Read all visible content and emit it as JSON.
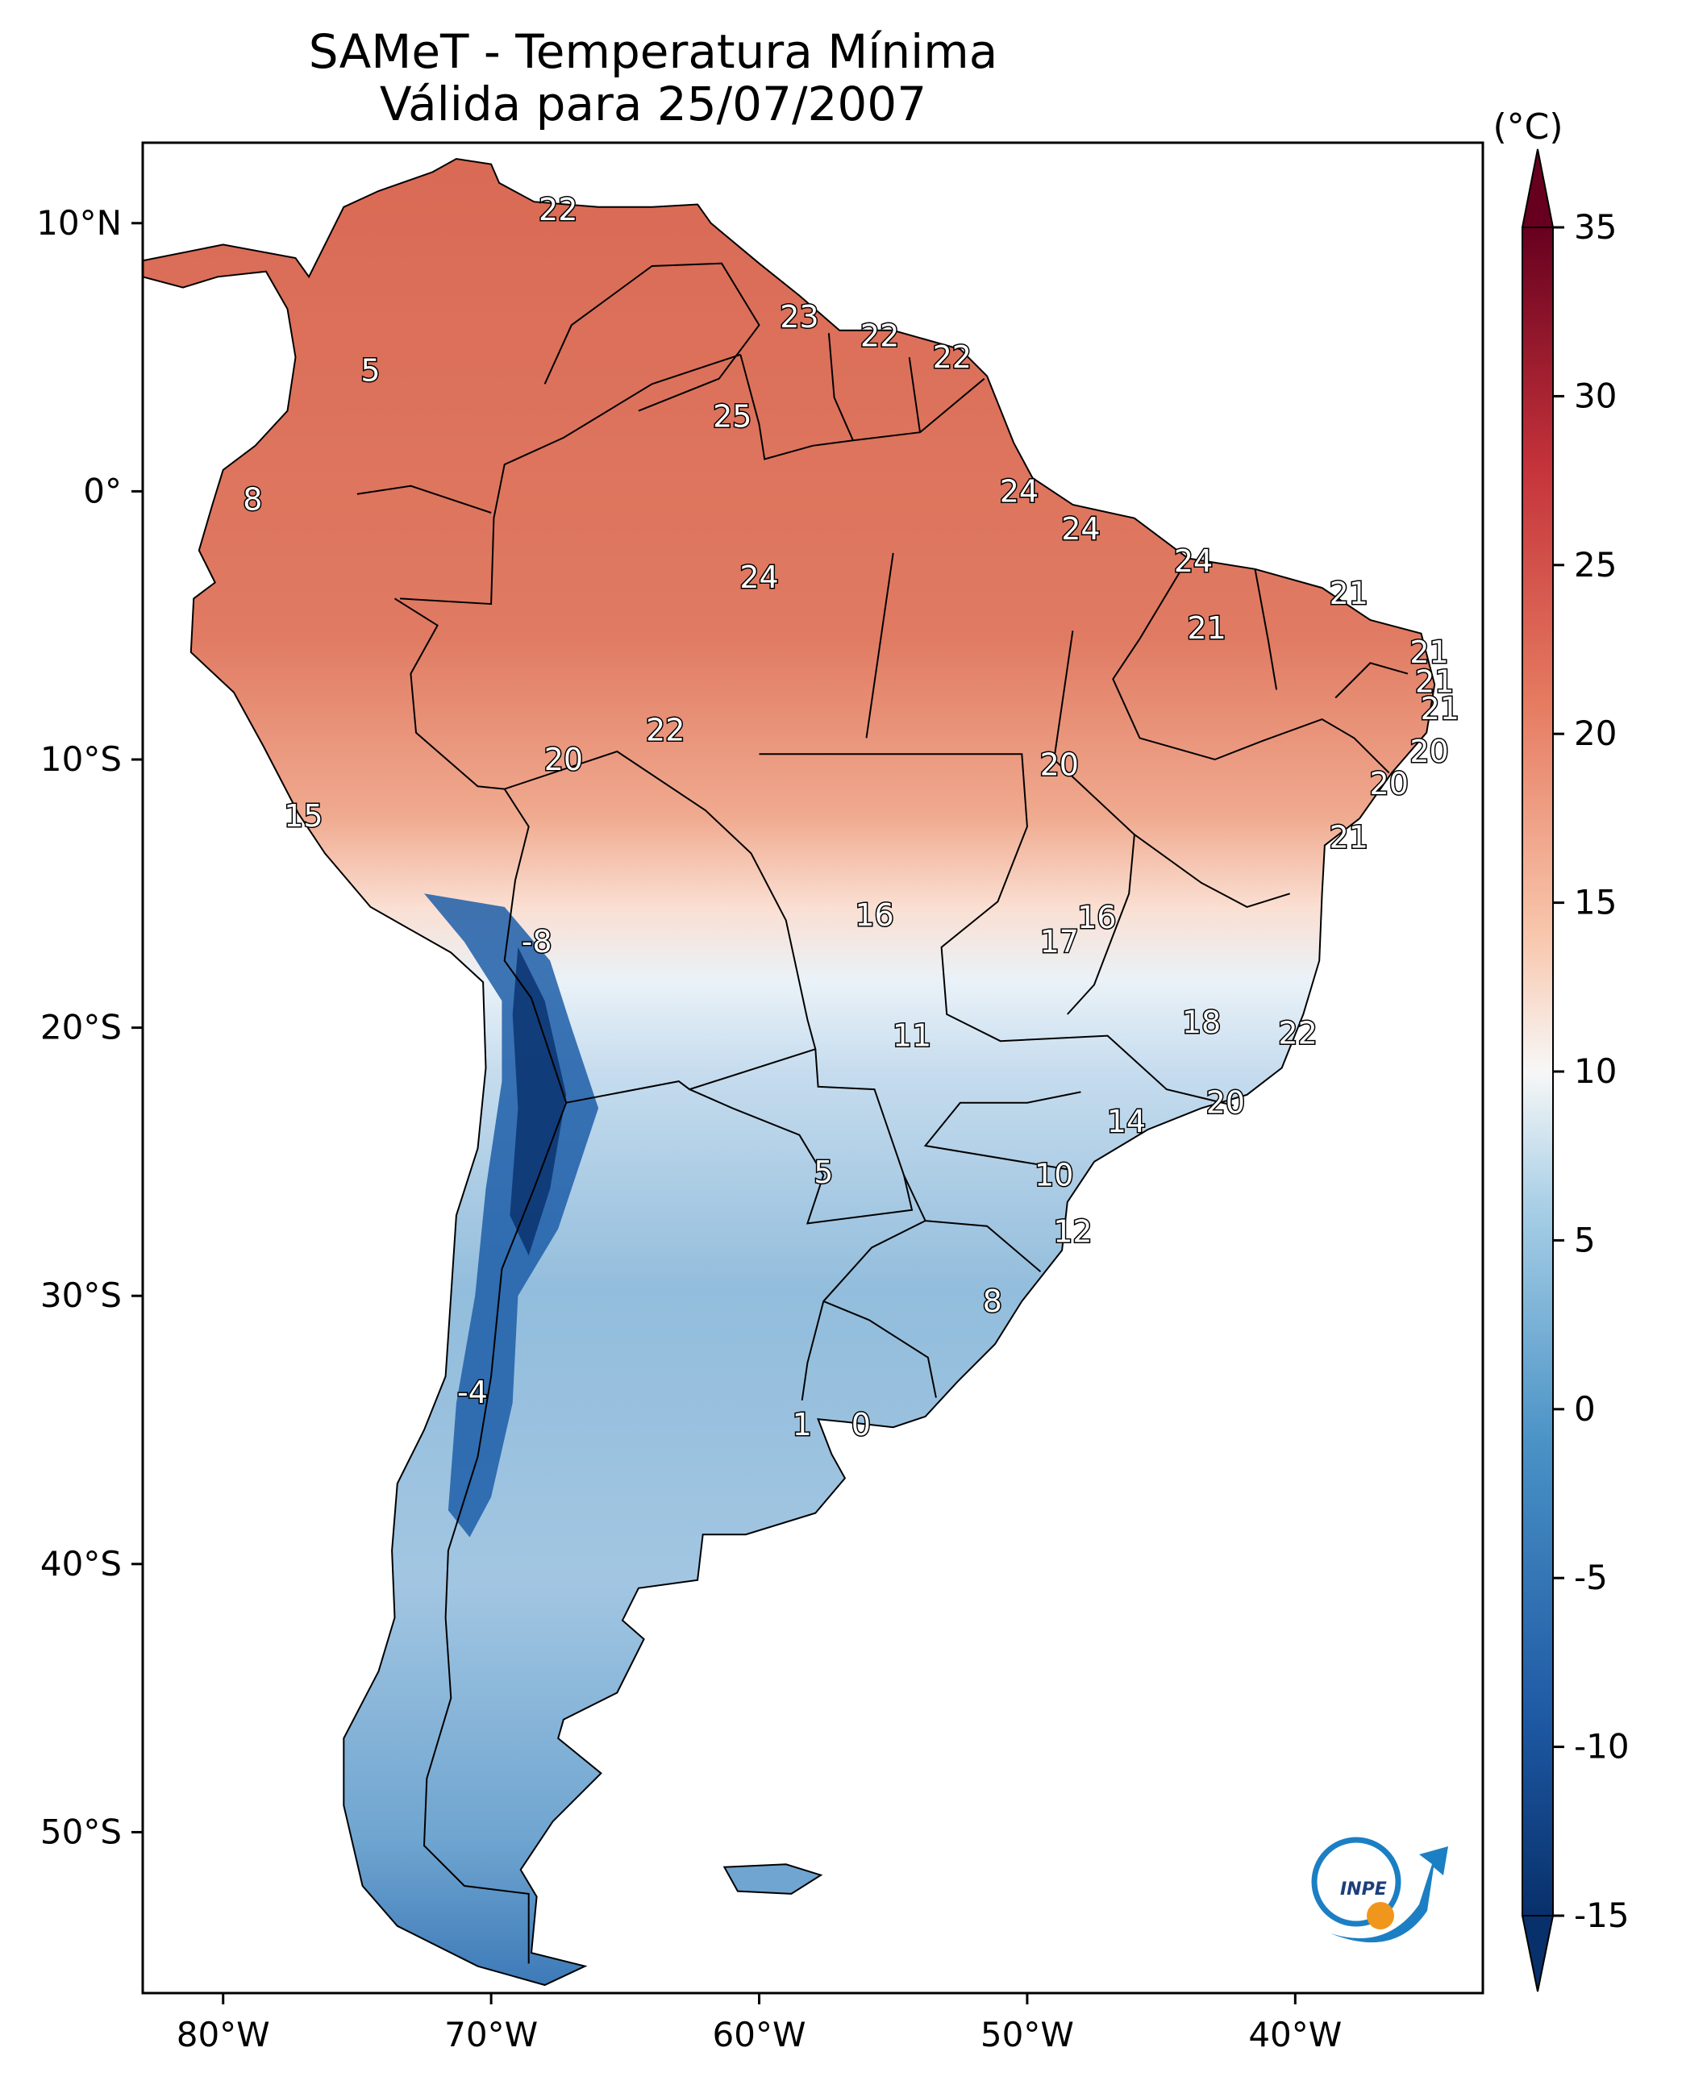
{
  "title": "SAMeT - Temperatura Mínima",
  "subtitle": "Válida para 25/07/2007",
  "colorbar": {
    "unit_label": "(°C)",
    "ticks": [
      "35",
      "30",
      "25",
      "20",
      "15",
      "10",
      "5",
      "0",
      "-5",
      "-10",
      "-15"
    ],
    "range": [
      -15,
      35
    ],
    "colormap": "RdBu_r",
    "extend": "both",
    "colors": {
      "min": "#08306b",
      "low": "#2166ac",
      "mid_low": "#92c5de",
      "mid": "#f7f7f7",
      "mid_high": "#f4a582",
      "high": "#d6604d",
      "max": "#67001f"
    }
  },
  "axes": {
    "lon_ticks": [
      "80°W",
      "70°W",
      "60°W",
      "50°W",
      "40°W"
    ],
    "lat_ticks": [
      "10°N",
      "0°",
      "10°S",
      "20°S",
      "30°S",
      "40°S",
      "50°S"
    ],
    "lon_range": [
      -83,
      -33
    ],
    "lat_range": [
      -56,
      13
    ]
  },
  "map_labels": [
    {
      "text": "22",
      "lon": -67.5,
      "lat": 10.5
    },
    {
      "text": "5",
      "lon": -74.5,
      "lat": 4.5
    },
    {
      "text": "23",
      "lon": -58.5,
      "lat": 6.5
    },
    {
      "text": "22",
      "lon": -55.5,
      "lat": 5.8
    },
    {
      "text": "22",
      "lon": -52.8,
      "lat": 5.0
    },
    {
      "text": "25",
      "lon": -61.0,
      "lat": 2.8
    },
    {
      "text": "8",
      "lon": -78.9,
      "lat": -0.3
    },
    {
      "text": "24",
      "lon": -50.3,
      "lat": 0.0
    },
    {
      "text": "24",
      "lon": -48.0,
      "lat": -1.4
    },
    {
      "text": "24",
      "lon": -60.0,
      "lat": -3.2
    },
    {
      "text": "24",
      "lon": -43.8,
      "lat": -2.6
    },
    {
      "text": "21",
      "lon": -38.0,
      "lat": -3.8
    },
    {
      "text": "21",
      "lon": -43.3,
      "lat": -5.1
    },
    {
      "text": "21",
      "lon": -35.0,
      "lat": -6.0
    },
    {
      "text": "21",
      "lon": -34.8,
      "lat": -7.1
    },
    {
      "text": "21",
      "lon": -34.6,
      "lat": -8.1
    },
    {
      "text": "22",
      "lon": -63.5,
      "lat": -8.9
    },
    {
      "text": "20",
      "lon": -67.3,
      "lat": -10.0
    },
    {
      "text": "20",
      "lon": -48.8,
      "lat": -10.2
    },
    {
      "text": "20",
      "lon": -35.0,
      "lat": -9.7
    },
    {
      "text": "20",
      "lon": -36.5,
      "lat": -10.9
    },
    {
      "text": "15",
      "lon": -77.0,
      "lat": -12.1
    },
    {
      "text": "21",
      "lon": -38.0,
      "lat": -12.9
    },
    {
      "text": "16",
      "lon": -55.7,
      "lat": -15.8
    },
    {
      "text": "16",
      "lon": -47.4,
      "lat": -15.9
    },
    {
      "text": "17",
      "lon": -48.8,
      "lat": -16.8
    },
    {
      "text": "-8",
      "lon": -68.3,
      "lat": -16.8
    },
    {
      "text": "18",
      "lon": -43.5,
      "lat": -19.8
    },
    {
      "text": "11",
      "lon": -54.3,
      "lat": -20.3
    },
    {
      "text": "22",
      "lon": -39.9,
      "lat": -20.2
    },
    {
      "text": "20",
      "lon": -42.6,
      "lat": -22.8
    },
    {
      "text": "14",
      "lon": -46.3,
      "lat": -23.5
    },
    {
      "text": "5",
      "lon": -57.6,
      "lat": -25.4
    },
    {
      "text": "10",
      "lon": -49.0,
      "lat": -25.5
    },
    {
      "text": "12",
      "lon": -48.3,
      "lat": -27.6
    },
    {
      "text": "8",
      "lon": -51.3,
      "lat": -30.2
    },
    {
      "text": "-4",
      "lon": -70.7,
      "lat": -33.6
    },
    {
      "text": "1",
      "lon": -58.4,
      "lat": -34.8
    },
    {
      "text": "0",
      "lon": -56.2,
      "lat": -34.8
    }
  ],
  "logo": {
    "text": "INPE"
  }
}
